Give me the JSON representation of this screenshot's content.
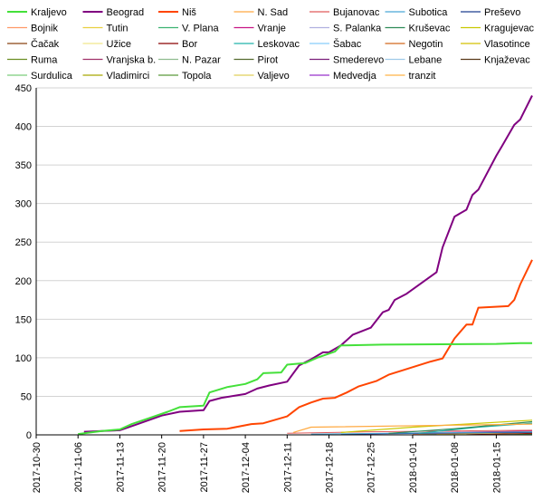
{
  "chart_data": {
    "type": "line",
    "title": "",
    "xlabel": "",
    "ylabel": "",
    "ylim": [
      0,
      450
    ],
    "yticks": [
      0,
      50,
      100,
      150,
      200,
      250,
      300,
      350,
      400,
      450
    ],
    "xlim": [
      "2017-10-30",
      "2018-01-21"
    ],
    "xticks": [
      "2017-10-30",
      "2017-11-06",
      "2017-11-13",
      "2017-11-20",
      "2017-11-27",
      "2017-12-04",
      "2017-12-11",
      "2017-12-18",
      "2017-12-25",
      "2018-01-01",
      "2018-01-08",
      "2018-01-15"
    ],
    "grid": "horizontal",
    "legend_position": "top",
    "series": [
      {
        "name": "Kraljevo",
        "color": "#44e03a",
        "width": 2,
        "points": [
          [
            "2017-11-06",
            1
          ],
          [
            "2017-11-10",
            5
          ],
          [
            "2017-11-13",
            7
          ],
          [
            "2017-11-15",
            14
          ],
          [
            "2017-11-18",
            22
          ],
          [
            "2017-11-21",
            30
          ],
          [
            "2017-11-23",
            36
          ],
          [
            "2017-11-27",
            38
          ],
          [
            "2017-11-28",
            55
          ],
          [
            "2017-12-01",
            62
          ],
          [
            "2017-12-04",
            66
          ],
          [
            "2017-12-06",
            72
          ],
          [
            "2017-12-07",
            80
          ],
          [
            "2017-12-10",
            81
          ],
          [
            "2017-12-11",
            91
          ],
          [
            "2017-12-14",
            93
          ],
          [
            "2017-12-16",
            100
          ],
          [
            "2017-12-19",
            108
          ],
          [
            "2017-12-20",
            116
          ],
          [
            "2017-12-27",
            117
          ],
          [
            "2018-01-15",
            118
          ],
          [
            "2018-01-19",
            119
          ],
          [
            "2018-01-21",
            119
          ]
        ]
      },
      {
        "name": "Beograd",
        "color": "#800080",
        "width": 2,
        "points": [
          [
            "2017-11-07",
            4
          ],
          [
            "2017-11-10",
            5
          ],
          [
            "2017-11-13",
            6
          ],
          [
            "2017-11-16",
            14
          ],
          [
            "2017-11-20",
            25
          ],
          [
            "2017-11-23",
            30
          ],
          [
            "2017-11-27",
            32
          ],
          [
            "2017-11-28",
            44
          ],
          [
            "2017-11-30",
            48
          ],
          [
            "2017-12-04",
            53
          ],
          [
            "2017-12-06",
            60
          ],
          [
            "2017-12-08",
            64
          ],
          [
            "2017-12-11",
            69
          ],
          [
            "2017-12-13",
            90
          ],
          [
            "2017-12-15",
            98
          ],
          [
            "2017-12-17",
            107
          ],
          [
            "2017-12-18",
            107
          ],
          [
            "2017-12-20",
            116
          ],
          [
            "2017-12-22",
            130
          ],
          [
            "2017-12-25",
            139
          ],
          [
            "2017-12-27",
            159
          ],
          [
            "2017-12-28",
            162
          ],
          [
            "2017-12-29",
            175
          ],
          [
            "2017-12-31",
            183
          ],
          [
            "2018-01-05",
            211
          ],
          [
            "2018-01-06",
            243
          ],
          [
            "2018-01-08",
            283
          ],
          [
            "2018-01-10",
            292
          ],
          [
            "2018-01-11",
            311
          ],
          [
            "2018-01-12",
            318
          ],
          [
            "2018-01-15",
            362
          ],
          [
            "2018-01-16",
            375
          ],
          [
            "2018-01-18",
            402
          ],
          [
            "2018-01-19",
            409
          ],
          [
            "2018-01-21",
            440
          ]
        ]
      },
      {
        "name": "Niš",
        "color": "#ff4500",
        "width": 2,
        "points": [
          [
            "2017-11-23",
            5
          ],
          [
            "2017-11-27",
            7
          ],
          [
            "2017-12-01",
            8
          ],
          [
            "2017-12-05",
            14
          ],
          [
            "2017-12-07",
            15
          ],
          [
            "2017-12-11",
            24
          ],
          [
            "2017-12-13",
            36
          ],
          [
            "2017-12-15",
            42
          ],
          [
            "2017-12-17",
            47
          ],
          [
            "2017-12-19",
            48
          ],
          [
            "2017-12-21",
            55
          ],
          [
            "2017-12-23",
            63
          ],
          [
            "2017-12-26",
            70
          ],
          [
            "2017-12-28",
            78
          ],
          [
            "2017-12-30",
            83
          ],
          [
            "2018-01-04",
            95
          ],
          [
            "2018-01-06",
            99
          ],
          [
            "2018-01-08",
            125
          ],
          [
            "2018-01-10",
            143
          ],
          [
            "2018-01-11",
            143
          ],
          [
            "2018-01-12",
            165
          ],
          [
            "2018-01-17",
            167
          ],
          [
            "2018-01-18",
            175
          ],
          [
            "2018-01-19",
            195
          ],
          [
            "2018-01-21",
            227
          ]
        ]
      },
      {
        "name": "N. Sad",
        "color": "#ffa940",
        "width": 1.2,
        "points": [
          [
            "2017-12-12",
            3
          ],
          [
            "2017-12-15",
            10
          ],
          [
            "2018-01-21",
            14
          ]
        ]
      },
      {
        "name": "Bujanovac",
        "color": "#e05a5a",
        "width": 1,
        "points": [
          [
            "2017-12-11",
            2
          ],
          [
            "2017-12-25",
            4
          ],
          [
            "2018-01-21",
            6
          ]
        ]
      },
      {
        "name": "Subotica",
        "color": "#4aa8d8",
        "width": 1,
        "points": [
          [
            "2017-12-15",
            1
          ],
          [
            "2018-01-21",
            4
          ]
        ]
      },
      {
        "name": "Preševo",
        "color": "#1f3f8f",
        "width": 1,
        "points": [
          [
            "2017-12-20",
            1
          ],
          [
            "2018-01-21",
            3
          ]
        ]
      },
      {
        "name": "Bojnik",
        "color": "#ff9966",
        "width": 1,
        "points": [
          [
            "2018-01-01",
            1
          ],
          [
            "2018-01-21",
            4
          ]
        ]
      },
      {
        "name": "Tutin",
        "color": "#e8d040",
        "width": 1,
        "points": [
          [
            "2018-01-05",
            1
          ],
          [
            "2018-01-21",
            3
          ]
        ]
      },
      {
        "name": "V. Plana",
        "color": "#3cb371",
        "width": 1,
        "points": [
          [
            "2018-01-02",
            1
          ],
          [
            "2018-01-21",
            3
          ]
        ]
      },
      {
        "name": "Vranje",
        "color": "#c71585",
        "width": 1,
        "points": [
          [
            "2017-12-22",
            1
          ],
          [
            "2018-01-21",
            5
          ]
        ]
      },
      {
        "name": "S. Palanka",
        "color": "#b0b0e0",
        "width": 1,
        "points": [
          [
            "2018-01-03",
            1
          ],
          [
            "2018-01-21",
            3
          ]
        ]
      },
      {
        "name": "Kruševac",
        "color": "#2e8b57",
        "width": 1.2,
        "points": [
          [
            "2017-12-28",
            2
          ],
          [
            "2018-01-08",
            8
          ],
          [
            "2018-01-21",
            17
          ]
        ]
      },
      {
        "name": "Kragujevac",
        "color": "#c8c800",
        "width": 1.2,
        "points": [
          [
            "2017-12-20",
            3
          ],
          [
            "2018-01-01",
            10
          ],
          [
            "2018-01-21",
            19
          ]
        ]
      },
      {
        "name": "Čačak",
        "color": "#8b4513",
        "width": 1,
        "points": [
          [
            "2018-01-01",
            1
          ],
          [
            "2018-01-21",
            5
          ]
        ]
      },
      {
        "name": "Užice",
        "color": "#f0e68c",
        "width": 1,
        "points": [
          [
            "2018-01-08",
            1
          ],
          [
            "2018-01-21",
            3
          ]
        ]
      },
      {
        "name": "Bor",
        "color": "#8b0000",
        "width": 1,
        "points": [
          [
            "2018-01-10",
            1
          ],
          [
            "2018-01-21",
            2
          ]
        ]
      },
      {
        "name": "Leskovac",
        "color": "#20b2aa",
        "width": 1.2,
        "points": [
          [
            "2018-01-02",
            2
          ],
          [
            "2018-01-12",
            10
          ],
          [
            "2018-01-21",
            15
          ]
        ]
      },
      {
        "name": "Šabac",
        "color": "#87cefa",
        "width": 1,
        "points": [
          [
            "2018-01-08",
            1
          ],
          [
            "2018-01-21",
            4
          ]
        ]
      },
      {
        "name": "Negotin",
        "color": "#d2691e",
        "width": 1,
        "points": [
          [
            "2018-01-12",
            1
          ],
          [
            "2018-01-21",
            2
          ]
        ]
      },
      {
        "name": "Vlasotince",
        "color": "#d4c000",
        "width": 1,
        "points": [
          [
            "2018-01-06",
            1
          ],
          [
            "2018-01-21",
            3
          ]
        ]
      },
      {
        "name": "Ruma",
        "color": "#6b8e23",
        "width": 1,
        "points": [
          [
            "2018-01-10",
            1
          ],
          [
            "2018-01-21",
            2
          ]
        ]
      },
      {
        "name": "Vranjska b.",
        "color": "#a0306a",
        "width": 1,
        "points": [
          [
            "2018-01-04",
            1
          ],
          [
            "2018-01-21",
            4
          ]
        ]
      },
      {
        "name": "N. Pazar",
        "color": "#8fbc8f",
        "width": 1,
        "points": [
          [
            "2018-01-12",
            1
          ],
          [
            "2018-01-21",
            2
          ]
        ]
      },
      {
        "name": "Pirot",
        "color": "#556b2f",
        "width": 1,
        "points": [
          [
            "2018-01-14",
            1
          ],
          [
            "2018-01-21",
            2
          ]
        ]
      },
      {
        "name": "Smederevo",
        "color": "#7b1f7b",
        "width": 1,
        "points": [
          [
            "2018-01-10",
            1
          ],
          [
            "2018-01-21",
            3
          ]
        ]
      },
      {
        "name": "Lebane",
        "color": "#9ec9e8",
        "width": 1,
        "points": [
          [
            "2018-01-14",
            1
          ],
          [
            "2018-01-21",
            2
          ]
        ]
      },
      {
        "name": "Knjaževac",
        "color": "#5a3a1a",
        "width": 1,
        "points": [
          [
            "2018-01-16",
            1
          ],
          [
            "2018-01-21",
            2
          ]
        ]
      },
      {
        "name": "Surdulica",
        "color": "#7ccd7c",
        "width": 1,
        "points": [
          [
            "2018-01-12",
            1
          ],
          [
            "2018-01-21",
            3
          ]
        ]
      },
      {
        "name": "Vladimirci",
        "color": "#a8a800",
        "width": 1,
        "points": [
          [
            "2018-01-16",
            1
          ],
          [
            "2018-01-21",
            2
          ]
        ]
      },
      {
        "name": "Topola",
        "color": "#5a9a3a",
        "width": 1,
        "points": [
          [
            "2018-01-17",
            1
          ],
          [
            "2018-01-21",
            1
          ]
        ]
      },
      {
        "name": "Valjevo",
        "color": "#e0d05a",
        "width": 1,
        "points": [
          [
            "2018-01-15",
            1
          ],
          [
            "2018-01-21",
            2
          ]
        ]
      },
      {
        "name": "Medvedja",
        "color": "#9932cc",
        "width": 1,
        "points": [
          [
            "2018-01-17",
            1
          ],
          [
            "2018-01-21",
            1
          ]
        ]
      },
      {
        "name": "tranzit",
        "color": "#ffb347",
        "width": 1,
        "points": [
          [
            "2018-01-18",
            1
          ],
          [
            "2018-01-21",
            2
          ]
        ]
      }
    ]
  }
}
